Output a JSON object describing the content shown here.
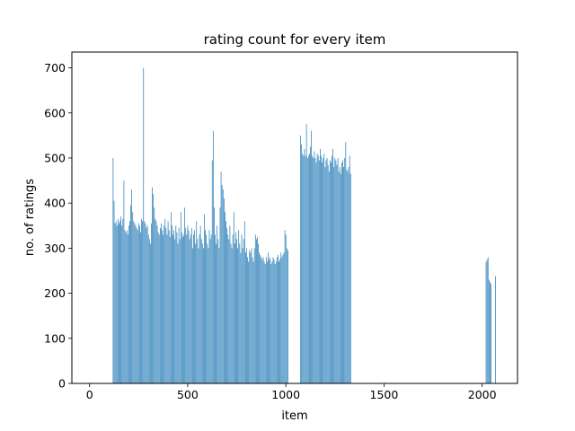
{
  "chart_data": {
    "type": "bar",
    "title": "rating count for every item",
    "xlabel": "item",
    "ylabel": "no. of ratings",
    "xlim": [
      -90,
      2180
    ],
    "ylim": [
      0,
      735
    ],
    "xticks": [
      0,
      500,
      1000,
      1500,
      2000
    ],
    "yticks": [
      0,
      100,
      200,
      300,
      400,
      500,
      600,
      700
    ],
    "grid": false,
    "legend": "none",
    "bar_color": "#1f77b4",
    "segments": [
      {
        "x_start": 120,
        "values": [
          500,
          405,
          355,
          360,
          350,
          365,
          355,
          360,
          370,
          350,
          365,
          450,
          340,
          335,
          340,
          330,
          350,
          360,
          395,
          430,
          380,
          360,
          355,
          350,
          345,
          340,
          355,
          350,
          335,
          365,
          360,
          700,
          360,
          355,
          345,
          350,
          330,
          320,
          310,
          355,
          435,
          420,
          390,
          365,
          360,
          350,
          335,
          330,
          345,
          355,
          340,
          330,
          350,
          365,
          345,
          330,
          360,
          340,
          325,
          380,
          350,
          330,
          340,
          320,
          350,
          335,
          310,
          345,
          320,
          380,
          335,
          325,
          330,
          390,
          345,
          330,
          350,
          340,
          320,
          330,
          345,
          300,
          330,
          340,
          310,
          360,
          320,
          300,
          330,
          350,
          320,
          310,
          300,
          375,
          340,
          330,
          310,
          300,
          340,
          320,
          330,
          495,
          560,
          390,
          330,
          310,
          350,
          320,
          300,
          390,
          470,
          440,
          430,
          410,
          380,
          360,
          345,
          330,
          320,
          350,
          310,
          300,
          330,
          380,
          310,
          335,
          320,
          300,
          340,
          310,
          290,
          330,
          300,
          320,
          360,
          290,
          300,
          280,
          270,
          295,
          290,
          300,
          280,
          270,
          300,
          330,
          320,
          325,
          310,
          290,
          285,
          280,
          275,
          280,
          270,
          265,
          280,
          270,
          290,
          275,
          280,
          265,
          270,
          280,
          275,
          265,
          270,
          280,
          285,
          270,
          275,
          290,
          280,
          285,
          290,
          340,
          330,
          300,
          295
        ]
      },
      {
        "x_start": 1075,
        "values": [
          550,
          530,
          510,
          505,
          520,
          505,
          575,
          500,
          505,
          510,
          525,
          560,
          505,
          500,
          515,
          500,
          490,
          510,
          505,
          495,
          520,
          505,
          490,
          500,
          510,
          480,
          495,
          500,
          485,
          470,
          495,
          490,
          505,
          520,
          480,
          500,
          495,
          485,
          500,
          470,
          480,
          465,
          490,
          495,
          480,
          500,
          535,
          475,
          470,
          480,
          505,
          465
        ]
      },
      {
        "x_start": 2020,
        "values": [
          270,
          275,
          280,
          230,
          225,
          220
        ]
      },
      {
        "x_start": 2068,
        "values": [
          238
        ]
      }
    ]
  }
}
